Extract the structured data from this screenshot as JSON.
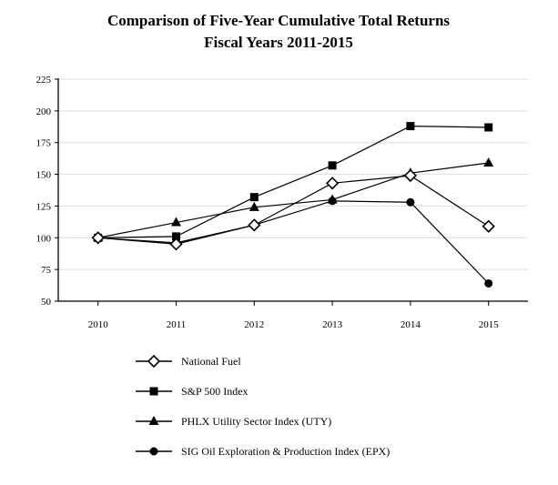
{
  "chart_data": {
    "type": "line",
    "title": "Comparison of Five-Year Cumulative Total Returns",
    "subtitle": "Fiscal Years 2011-2015",
    "xlabel": "",
    "ylabel": "",
    "x": [
      "2010",
      "2011",
      "2012",
      "2013",
      "2014",
      "2015"
    ],
    "ylim": [
      50,
      225
    ],
    "yticks": [
      50,
      75,
      100,
      125,
      150,
      175,
      200,
      225
    ],
    "grid": true,
    "legend_position": "bottom",
    "series": [
      {
        "name": "National Fuel",
        "marker": "diamond-open",
        "values": [
          100,
          95,
          110,
          143,
          149,
          109
        ]
      },
      {
        "name": "S&P 500 Index",
        "marker": "square",
        "values": [
          100,
          101,
          132,
          157,
          188,
          187
        ]
      },
      {
        "name": "PHLX Utility Sector Index (UTY)",
        "marker": "triangle",
        "values": [
          100,
          112,
          124,
          130,
          151,
          159
        ]
      },
      {
        "name": "SIG Oil Exploration & Production Index (EPX)",
        "marker": "circle",
        "values": [
          100,
          96,
          110,
          129,
          128,
          64
        ]
      }
    ]
  }
}
